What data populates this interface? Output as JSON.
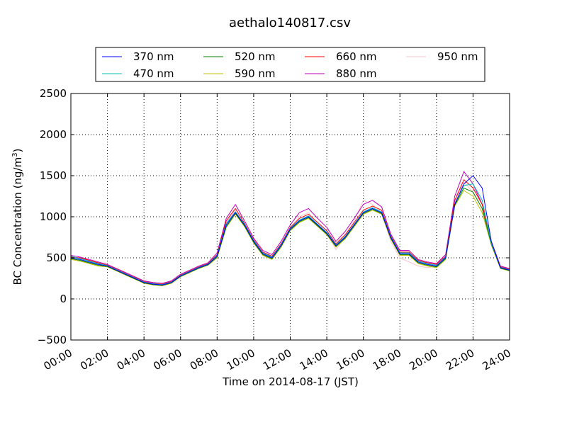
{
  "chart_data": {
    "type": "line",
    "title": "aethalo140817.csv",
    "xlabel": "Time on 2014-08-17 (JST)",
    "ylabel_main": "BC Concentration (ng/m",
    "ylabel_sup": "3",
    "ylabel_end": ")",
    "xlim": [
      0,
      24
    ],
    "ylim": [
      -500,
      2500
    ],
    "x_ticks": [
      0,
      2,
      4,
      6,
      8,
      10,
      12,
      14,
      16,
      18,
      20,
      22,
      24
    ],
    "x_tick_labels": [
      "00:00",
      "02:00",
      "04:00",
      "06:00",
      "08:00",
      "10:00",
      "12:00",
      "14:00",
      "16:00",
      "18:00",
      "20:00",
      "22:00",
      "24:00"
    ],
    "y_ticks": [
      -500,
      0,
      500,
      1000,
      1500,
      2000,
      2500
    ],
    "y_tick_labels": [
      "−500",
      "0",
      "500",
      "1000",
      "1500",
      "2000",
      "2500"
    ],
    "grid": true,
    "legend_position": "top",
    "x": [
      0,
      0.5,
      1,
      1.5,
      2,
      2.5,
      3,
      3.5,
      4,
      4.5,
      5,
      5.5,
      6,
      6.5,
      7,
      7.5,
      8,
      8.5,
      9,
      9.5,
      10,
      10.5,
      11,
      11.5,
      12,
      12.5,
      13,
      13.5,
      14,
      14.5,
      15,
      15.5,
      16,
      16.5,
      17,
      17.5,
      18,
      18.5,
      19,
      19.5,
      20,
      20.5,
      21,
      21.5,
      22,
      22.5,
      23,
      23.5,
      24
    ],
    "series": [
      {
        "name": "370 nm",
        "color": "#0000ff",
        "values": [
          500,
          480,
          450,
          420,
          400,
          350,
          300,
          250,
          200,
          180,
          170,
          200,
          280,
          330,
          380,
          420,
          520,
          900,
          1050,
          900,
          700,
          550,
          500,
          650,
          850,
          950,
          1000,
          900,
          800,
          650,
          750,
          900,
          1050,
          1100,
          1050,
          750,
          550,
          550,
          450,
          420,
          400,
          500,
          1150,
          1400,
          1500,
          1350,
          700,
          380,
          350
        ]
      },
      {
        "name": "470 nm",
        "color": "#00bfbf",
        "values": [
          520,
          490,
          460,
          430,
          405,
          355,
          305,
          255,
          205,
          185,
          175,
          205,
          285,
          335,
          385,
          425,
          530,
          920,
          1060,
          910,
          710,
          560,
          510,
          660,
          860,
          960,
          1010,
          910,
          810,
          660,
          760,
          910,
          1060,
          1110,
          1060,
          760,
          560,
          560,
          460,
          430,
          410,
          510,
          1160,
          1380,
          1400,
          1200,
          680,
          385,
          355
        ]
      },
      {
        "name": "520 nm",
        "color": "#008000",
        "values": [
          490,
          470,
          440,
          410,
          395,
          345,
          295,
          245,
          195,
          175,
          165,
          195,
          275,
          325,
          375,
          415,
          510,
          880,
          1040,
          890,
          690,
          540,
          490,
          640,
          840,
          940,
          990,
          890,
          790,
          640,
          740,
          890,
          1040,
          1090,
          1040,
          740,
          540,
          540,
          440,
          410,
          390,
          490,
          1140,
          1350,
          1300,
          1100,
          670,
          375,
          345
        ]
      },
      {
        "name": "590 nm",
        "color": "#bfbf00",
        "values": [
          480,
          460,
          430,
          400,
          390,
          340,
          290,
          240,
          190,
          170,
          160,
          190,
          270,
          320,
          370,
          410,
          500,
          870,
          1030,
          880,
          680,
          530,
          480,
          630,
          830,
          930,
          980,
          880,
          780,
          630,
          730,
          880,
          1030,
          1080,
          1030,
          730,
          530,
          530,
          430,
          400,
          380,
          480,
          1130,
          1320,
          1250,
          1050,
          660,
          370,
          340
        ]
      },
      {
        "name": "660 nm",
        "color": "#ff0000",
        "values": [
          510,
          500,
          470,
          440,
          410,
          360,
          310,
          260,
          210,
          190,
          180,
          210,
          290,
          340,
          390,
          430,
          540,
          950,
          1100,
          920,
          720,
          570,
          520,
          670,
          870,
          980,
          1030,
          930,
          830,
          670,
          780,
          930,
          1080,
          1130,
          1080,
          770,
          570,
          570,
          470,
          440,
          420,
          520,
          1200,
          1450,
          1350,
          1150,
          690,
          390,
          360
        ]
      },
      {
        "name": "880 nm",
        "color": "#bf00bf",
        "values": [
          530,
          510,
          480,
          450,
          420,
          370,
          320,
          270,
          220,
          200,
          190,
          220,
          300,
          350,
          400,
          440,
          560,
          980,
          1150,
          950,
          740,
          590,
          540,
          700,
          900,
          1050,
          1100,
          980,
          870,
          700,
          820,
          980,
          1150,
          1200,
          1120,
          790,
          590,
          590,
          480,
          450,
          430,
          540,
          1250,
          1550,
          1400,
          1150,
          700,
          400,
          370
        ]
      },
      {
        "name": "950 nm",
        "color": "#ffc0cb",
        "values": [
          500,
          490,
          460,
          430,
          400,
          350,
          300,
          250,
          200,
          180,
          170,
          200,
          280,
          330,
          380,
          420,
          520,
          930,
          1080,
          900,
          700,
          560,
          500,
          650,
          850,
          1000,
          1050,
          900,
          800,
          600,
          750,
          950,
          1200,
          1150,
          1050,
          700,
          500,
          450,
          400,
          380,
          400,
          500,
          1180,
          1420,
          1300,
          1100,
          650,
          380,
          350
        ]
      }
    ]
  }
}
